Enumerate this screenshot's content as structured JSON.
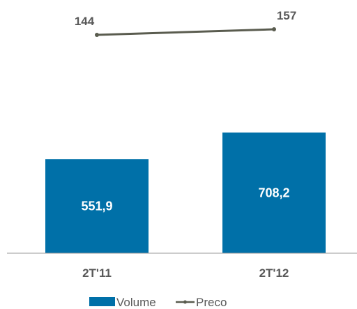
{
  "chart_data": {
    "type": "bar",
    "categories": [
      "2T'11",
      "2T'12"
    ],
    "series": [
      {
        "name": "Volume",
        "type": "bar",
        "values": [
          551.9,
          708.2
        ],
        "labels": [
          "551,9",
          "708,2"
        ],
        "color": "#0070a8"
      },
      {
        "name": "Preco",
        "type": "line",
        "values": [
          144,
          157
        ],
        "labels": [
          "144",
          "157"
        ],
        "color": "#5a5c4f"
      }
    ],
    "title": "",
    "xlabel": "",
    "ylabel": "",
    "legend": {
      "position": "bottom"
    },
    "grid": false
  }
}
